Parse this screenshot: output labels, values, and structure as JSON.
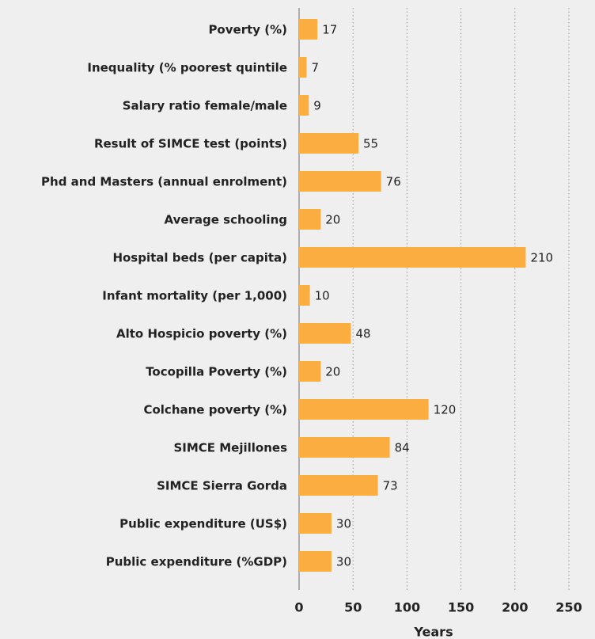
{
  "chart_data": {
    "type": "hbar",
    "categories": [
      "Poverty (%)",
      "Inequality (% poorest quintile",
      "Salary ratio female/male",
      "Result of SIMCE test (points)",
      "Phd and Masters (annual enrolment)",
      "Average schooling",
      "Hospital beds (per capita)",
      "Infant mortality (per 1,000)",
      "Alto Hospicio poverty (%)",
      "Tocopilla Poverty (%)",
      "Colchane poverty (%)",
      "SIMCE Mejillones",
      "SIMCE Sierra Gorda",
      "Public expenditure (US$)",
      "Public expenditure (%GDP)"
    ],
    "values": [
      17,
      7,
      9,
      55,
      76,
      20,
      210,
      10,
      48,
      20,
      120,
      84,
      73,
      30,
      30
    ],
    "color": "#fbae3f",
    "xlabel": "Years",
    "xlim": [
      0,
      250
    ],
    "xticks": [
      0,
      50,
      100,
      150,
      200,
      250
    ],
    "grid": true
  }
}
